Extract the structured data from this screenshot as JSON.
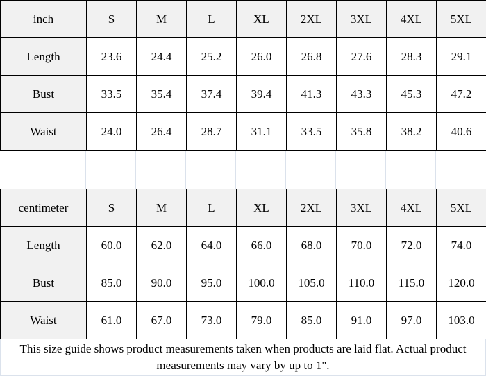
{
  "chart_data": [
    {
      "type": "table",
      "unit": "inch",
      "columns": [
        "inch",
        "S",
        "M",
        "L",
        "XL",
        "2XL",
        "3XL",
        "4XL",
        "5XL"
      ],
      "rows": [
        [
          "Length",
          "23.6",
          "24.4",
          "25.2",
          "26.0",
          "26.8",
          "27.6",
          "28.3",
          "29.1"
        ],
        [
          "Bust",
          "33.5",
          "35.4",
          "37.4",
          "39.4",
          "41.3",
          "43.3",
          "45.3",
          "47.2"
        ],
        [
          "Waist",
          "24.0",
          "26.4",
          "28.7",
          "31.1",
          "33.5",
          "35.8",
          "38.2",
          "40.6"
        ]
      ]
    },
    {
      "type": "table",
      "unit": "centimeter",
      "columns": [
        "centimeter",
        "S",
        "M",
        "L",
        "XL",
        "2XL",
        "3XL",
        "4XL",
        "5XL"
      ],
      "rows": [
        [
          "Length",
          "60.0",
          "62.0",
          "64.0",
          "66.0",
          "68.0",
          "70.0",
          "72.0",
          "74.0"
        ],
        [
          "Bust",
          "85.0",
          "90.0",
          "95.0",
          "100.0",
          "105.0",
          "110.0",
          "115.0",
          "120.0"
        ],
        [
          "Waist",
          "61.0",
          "67.0",
          "73.0",
          "79.0",
          "85.0",
          "91.0",
          "97.0",
          "103.0"
        ]
      ]
    }
  ],
  "footnote": "This size guide shows product measurements taken when products are laid flat. Actual product measurements may vary by up to 1\".",
  "colors": {
    "header_bg": "#f1f1f1",
    "table_border": "#000000",
    "light_grid": "#dbe2ec",
    "text": "#000000",
    "background": "#ffffff"
  }
}
